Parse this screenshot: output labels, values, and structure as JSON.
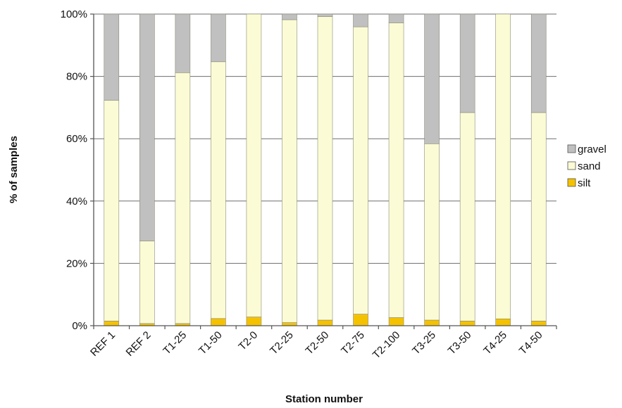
{
  "chart_data": {
    "type": "bar",
    "stacked": true,
    "percent_stacked": true,
    "categories": [
      "REF 1",
      "REF 2",
      "T1-25",
      "T1-50",
      "T2-0",
      "T2-25",
      "T2-50",
      "T2-75",
      "T2-100",
      "T3-25",
      "T3-50",
      "T4-25",
      "T4-50"
    ],
    "series": [
      {
        "name": "silt",
        "color": "#f5c200",
        "values": [
          1.5,
          0.7,
          0.7,
          2.3,
          2.8,
          1.0,
          1.8,
          3.7,
          2.6,
          1.8,
          1.5,
          2.2,
          1.5
        ]
      },
      {
        "name": "sand",
        "color": "#fbfbd5",
        "values": [
          70.8,
          26.5,
          80.5,
          82.4,
          97.2,
          97.2,
          97.4,
          92.2,
          94.6,
          56.6,
          66.9,
          97.8,
          66.9
        ]
      },
      {
        "name": "gravel",
        "color": "#c0c0c0",
        "values": [
          27.7,
          72.8,
          18.8,
          15.3,
          0.0,
          1.8,
          0.8,
          4.1,
          2.8,
          41.6,
          31.6,
          0.0,
          31.6
        ]
      }
    ],
    "legend_order": [
      "gravel",
      "sand",
      "silt"
    ],
    "legend_position": "right",
    "xlabel": "Station number",
    "ylabel": "% of samples",
    "ylim": [
      0,
      100
    ],
    "yticks": [
      "0%",
      "20%",
      "40%",
      "60%",
      "80%",
      "100%"
    ],
    "grid": "horizontal"
  }
}
